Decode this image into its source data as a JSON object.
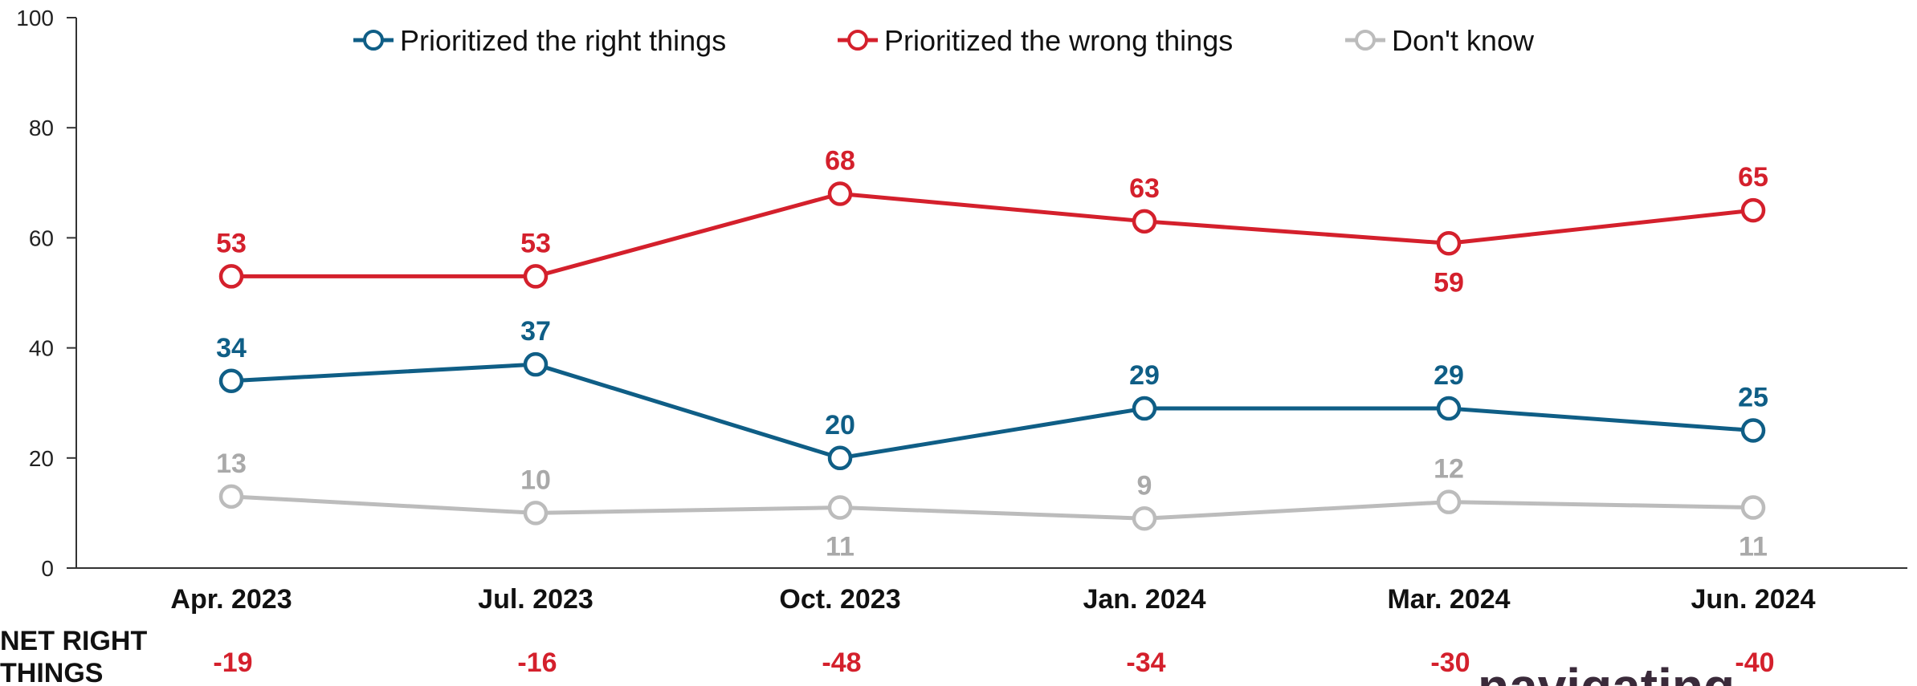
{
  "chart_data": {
    "type": "line",
    "title": "",
    "xlabel": "",
    "ylabel": "",
    "ylim": [
      0,
      100
    ],
    "yticks": [
      0,
      20,
      40,
      60,
      80,
      100
    ],
    "grid": false,
    "legend_position": "top",
    "categories": [
      "Apr. 2023",
      "Jul. 2023",
      "Oct. 2023",
      "Jan. 2024",
      "Mar. 2024",
      "Jun. 2024"
    ],
    "series": [
      {
        "name": "Prioritized the right things",
        "color": "#0f5e86",
        "label_color": "#0f5e86",
        "values": [
          34,
          37,
          20,
          29,
          29,
          25
        ]
      },
      {
        "name": "Prioritized the wrong things",
        "color": "#d4202c",
        "label_color": "#d4202c",
        "values": [
          53,
          53,
          68,
          63,
          59,
          65
        ]
      },
      {
        "name": "Don't know",
        "color": "#bcbcbc",
        "label_color": "#a9a9a9",
        "values": [
          13,
          10,
          11,
          9,
          12,
          11
        ]
      }
    ],
    "net_row": {
      "label_line1": "NET RIGHT",
      "label_line2": "THINGS",
      "color": "#d4202c",
      "values": [
        "-19",
        "-16",
        "-48",
        "-34",
        "-30",
        "-40"
      ]
    }
  },
  "brand": {
    "text": "navigating"
  }
}
